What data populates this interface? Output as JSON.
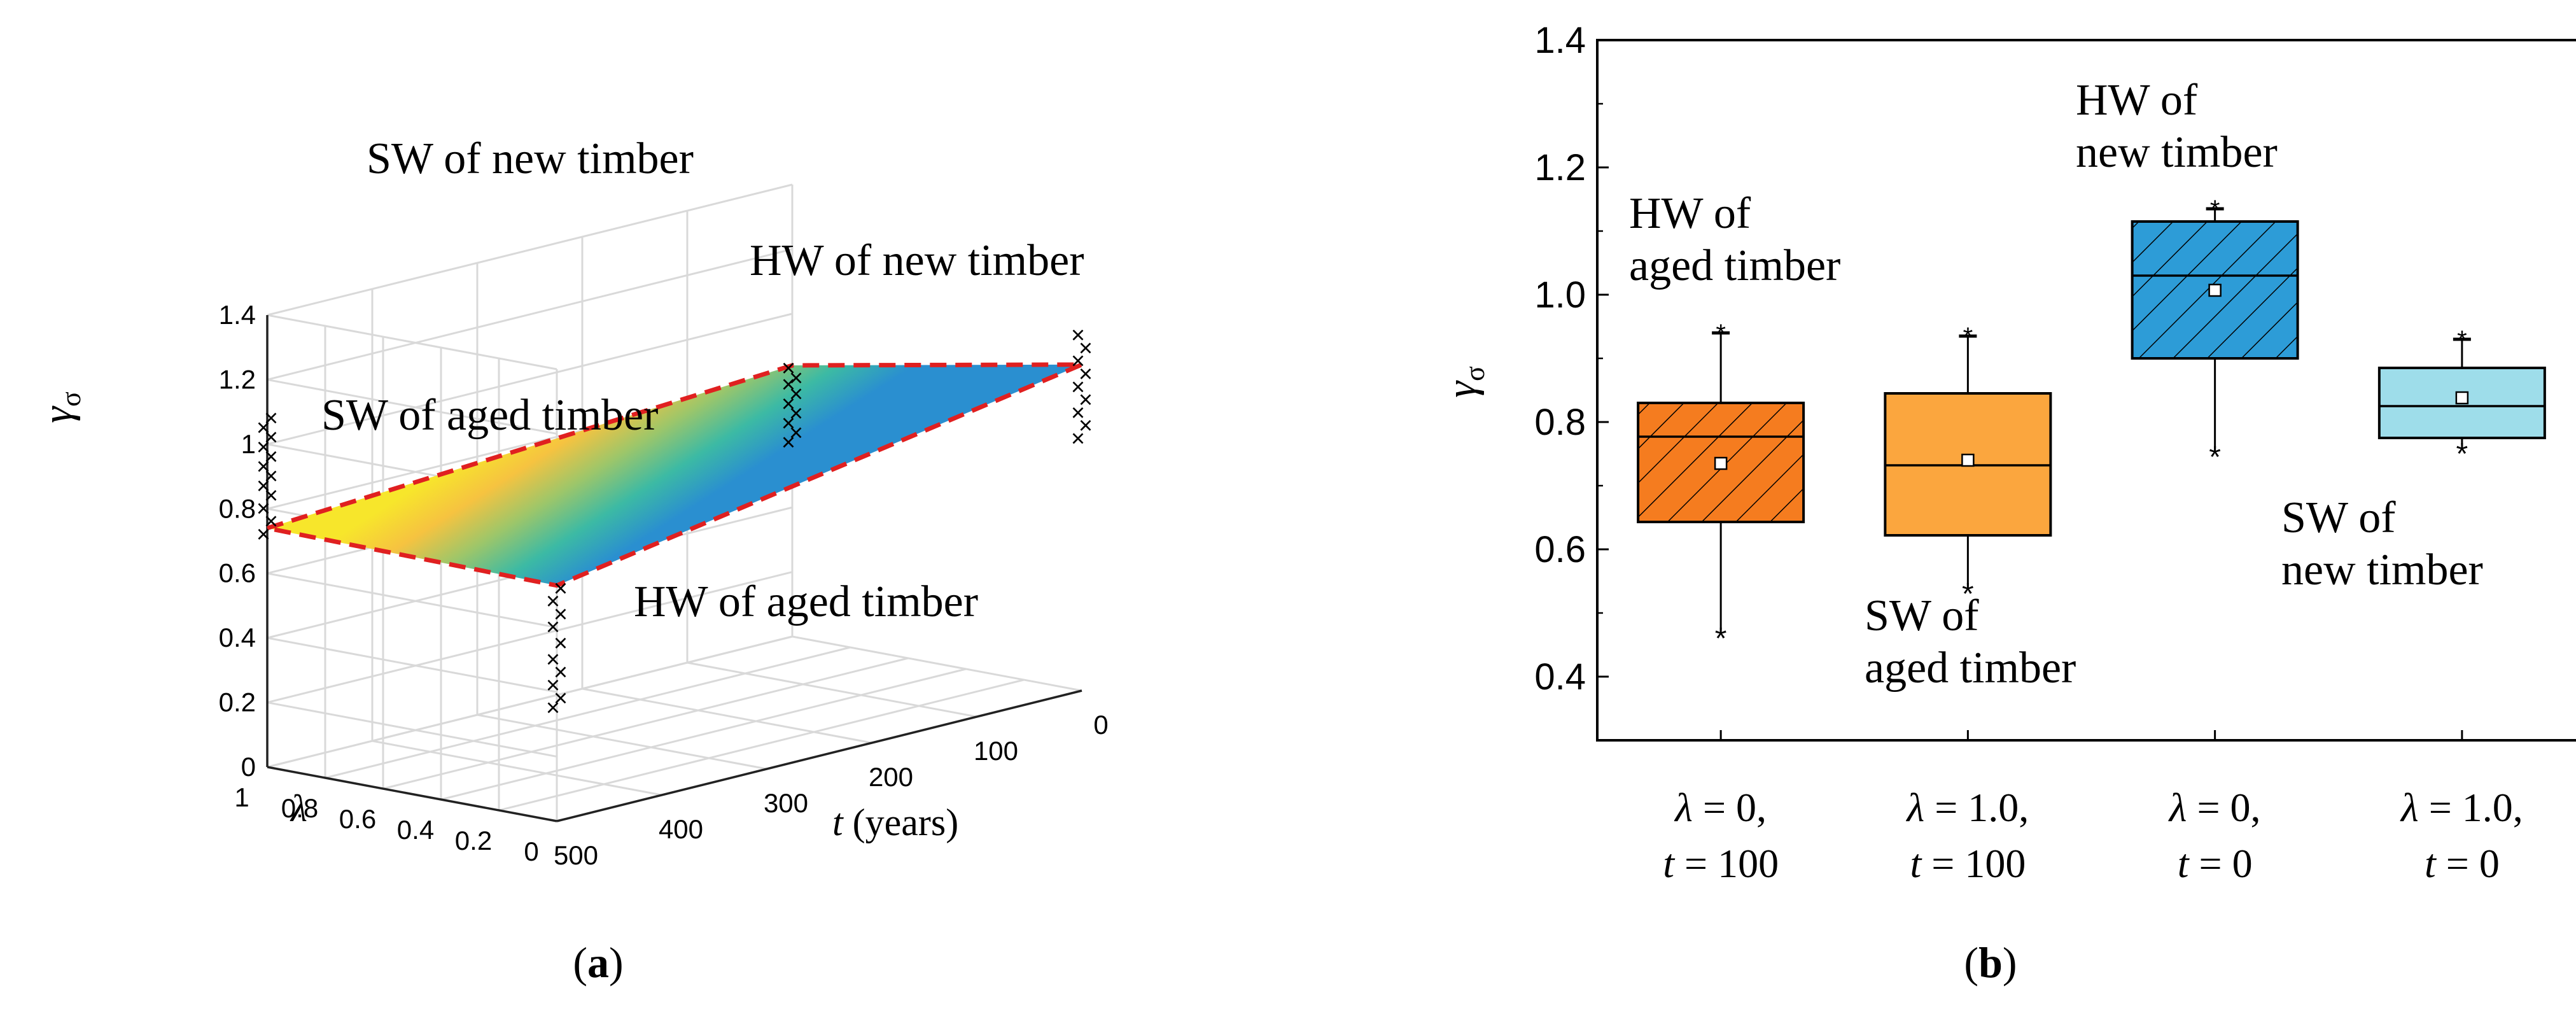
{
  "chart_data": [
    {
      "panel": "(a)",
      "panel_letter": "a",
      "type": "surface3d",
      "zlabel_symbol": "γ",
      "zlabel_sub": "σ",
      "ylabel": "λ",
      "xlabel_var": "t",
      "xlabel_unit": " (years)",
      "z_ticks": [
        "0",
        "0.2",
        "0.4",
        "0.6",
        "0.8",
        "1",
        "1.2",
        "1.4"
      ],
      "lambda_ticks": [
        "1",
        "0.8",
        "0.6",
        "0.4",
        "0.2",
        "0"
      ],
      "t_ticks": [
        "500",
        "400",
        "300",
        "200",
        "100",
        "0"
      ],
      "zlim": [
        0,
        1.4
      ],
      "lambda_range": [
        0,
        1
      ],
      "t_range": [
        0,
        500
      ],
      "corners": [
        {
          "label": "HW of new timber",
          "t": 0,
          "lambda": 0,
          "gamma": 1.01
        },
        {
          "label": "SW of new timber",
          "t": 0,
          "lambda": 1,
          "gamma": 0.84
        },
        {
          "label": "HW of aged timber",
          "t": 500,
          "lambda": 0,
          "gamma": 0.73
        },
        {
          "label": "SW of aged timber",
          "t": 500,
          "lambda": 1,
          "gamma": 0.74
        }
      ],
      "labels": {
        "sw_new": "SW of new timber",
        "hw_new": "HW of new timber",
        "sw_aged": "SW of aged timber",
        "hw_aged": "HW of aged timber"
      },
      "scatter_marker": "×"
    },
    {
      "panel": "(b)",
      "panel_letter": "b",
      "type": "boxplot",
      "ylabel_symbol": "γ",
      "ylabel_sub": "σ",
      "ylim": [
        0.3,
        1.4
      ],
      "y_ticks": [
        "0.4",
        "0.6",
        "0.8",
        "1.0",
        "1.2",
        "1.4"
      ],
      "categories": [
        {
          "line1": "λ = 0,",
          "line2": "t = 100",
          "color": "#F57C1F",
          "hatched": true,
          "q1": 0.643,
          "median": 0.777,
          "q3": 0.83,
          "mean": 0.735,
          "whisker_low": 0.47,
          "whisker_high": 0.94,
          "label": "HW of aged timber"
        },
        {
          "line1": "λ = 1.0,",
          "line2": "t = 100",
          "color": "#FBA63E",
          "hatched": false,
          "q1": 0.622,
          "median": 0.732,
          "q3": 0.845,
          "mean": 0.74,
          "whisker_low": 0.54,
          "whisker_high": 0.935,
          "label": "SW of aged timber"
        },
        {
          "line1": "λ = 0,",
          "line2": "t = 0",
          "color": "#2D9CD7",
          "hatched": true,
          "q1": 0.9,
          "median": 1.03,
          "q3": 1.115,
          "mean": 1.007,
          "whisker_low": 0.755,
          "whisker_high": 1.135,
          "label": "HW of new timber"
        },
        {
          "line1": "λ = 1.0,",
          "line2": "t = 0",
          "color": "#9EDDEA",
          "hatched": false,
          "q1": 0.775,
          "median": 0.825,
          "q3": 0.885,
          "mean": 0.838,
          "whisker_low": 0.76,
          "whisker_high": 0.93,
          "label": "SW of new timber"
        }
      ],
      "annotations": {
        "hw_aged": [
          "HW of",
          "aged timber"
        ],
        "sw_aged": [
          "SW of",
          "aged timber"
        ],
        "hw_new": [
          "HW of",
          "new timber"
        ],
        "sw_new": [
          "SW of",
          "new timber"
        ]
      }
    }
  ]
}
